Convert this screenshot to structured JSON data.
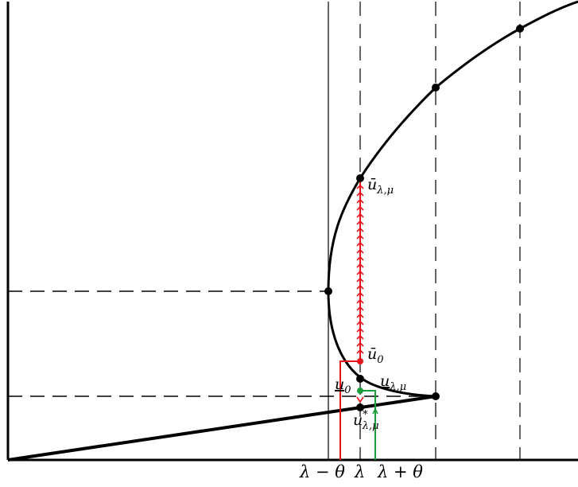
{
  "diagram": {
    "tick_labels": {
      "lambda_minus_theta": "λ − θ",
      "lambda": "λ",
      "lambda_plus_theta": "λ + θ"
    },
    "point_labels": {
      "upper_solution": "ū",
      "upper_subscript": "λ,μ",
      "lower_solution": "u",
      "lower_subscript": "λ,μ",
      "star_solution": "u",
      "star_superscript": "*",
      "star_subscript": "λ,μ",
      "u0_bar": "ū",
      "u0_bar_subscript": "0",
      "u0_under": "u",
      "u0_under_subscript": "0"
    },
    "colors": {
      "curve": "#000000",
      "red_path": "#e8141b",
      "green_path": "#1a9e3a",
      "guide": "#000000"
    }
  }
}
